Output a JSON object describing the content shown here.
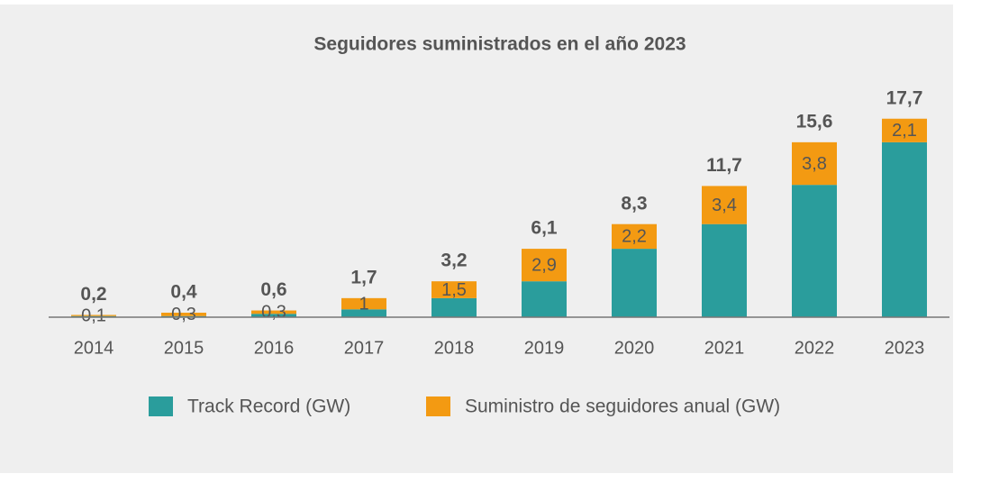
{
  "chart_data": {
    "type": "stacked_bar",
    "title": "Seguidores suministrados en el año 2023",
    "categories": [
      "2014",
      "2015",
      "2016",
      "2017",
      "2018",
      "2019",
      "2020",
      "2021",
      "2022",
      "2023"
    ],
    "series": [
      {
        "name": "Track Record (GW)",
        "color": "#2a9d9c",
        "values": [
          0.1,
          0.1,
          0.3,
          0.7,
          1.7,
          3.2,
          6.1,
          8.3,
          11.8,
          15.6
        ]
      },
      {
        "name": "Suministro de seguidores anual (GW)",
        "color": "#f39a12",
        "values": [
          0.1,
          0.3,
          0.3,
          1,
          1.5,
          2.9,
          2.2,
          3.4,
          3.8,
          2.1
        ],
        "value_labels": [
          "0,1",
          "0,3",
          "0,3",
          "1",
          "1,5",
          "2,9",
          "2,2",
          "3,4",
          "3,8",
          "2,1"
        ]
      }
    ],
    "totals": [
      0.2,
      0.4,
      0.6,
      1.7,
      3.2,
      6.1,
      8.3,
      11.7,
      15.6,
      17.7
    ],
    "total_labels": [
      "0,2",
      "0,4",
      "0,6",
      "1,7",
      "3,2",
      "6,1",
      "8,3",
      "11,7",
      "15,6",
      "17,7"
    ],
    "ylim": [
      0,
      18
    ],
    "legend": "bottom"
  }
}
